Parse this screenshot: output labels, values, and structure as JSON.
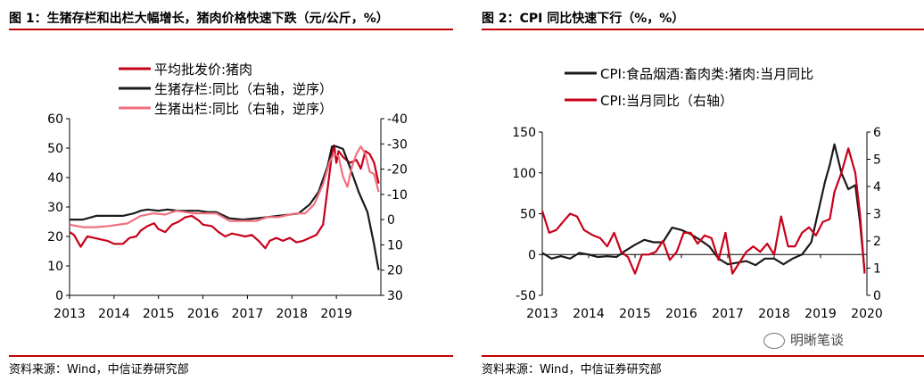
{
  "panels": [
    {
      "title": "图 1：生猪存栏和出栏大幅增长，猪肉价格快速下跌（元/公斤，%）",
      "source": "资料来源：Wind，中信证券研究部"
    },
    {
      "title": "图 2：CPI 同比快速下行（%，%）",
      "source": "资料来源：Wind，中信证券研究部"
    }
  ],
  "watermark": "明晰笔谈",
  "chart_data": [
    {
      "type": "line",
      "x_ticks": [
        "2013",
        "2014",
        "2015",
        "2016",
        "2017",
        "2018",
        "2019"
      ],
      "ylim": [
        0,
        60
      ],
      "y_ticks": [
        0,
        10,
        20,
        30,
        40,
        50,
        60
      ],
      "y2lim": [
        30,
        -40
      ],
      "y2_ticks": [
        "-40",
        "-30",
        "-20",
        "-10",
        "0",
        "10",
        "20",
        "30"
      ],
      "y2_reversed": true,
      "legend_position": "top-left",
      "series": [
        {
          "name": "平均批发价:猪肉",
          "color": "#c8001a",
          "axis": "left",
          "x": [
            2013.0,
            2013.1,
            2013.25,
            2013.4,
            2013.55,
            2013.7,
            2013.85,
            2014.0,
            2014.2,
            2014.35,
            2014.5,
            2014.6,
            2014.75,
            2014.9,
            2015.0,
            2015.15,
            2015.3,
            2015.45,
            2015.6,
            2015.75,
            2015.9,
            2016.0,
            2016.2,
            2016.35,
            2016.5,
            2016.65,
            2016.8,
            2016.95,
            2017.1,
            2017.25,
            2017.4,
            2017.5,
            2017.65,
            2017.8,
            2017.95,
            2018.1,
            2018.25,
            2018.4,
            2018.55,
            2018.7,
            2018.8,
            2018.9,
            2018.95,
            2019.0,
            2019.05,
            2019.15,
            2019.3,
            2019.45,
            2019.55,
            2019.65,
            2019.75,
            2019.85,
            2019.95
          ],
          "y": [
            21.5,
            20.5,
            16.5,
            20,
            19.5,
            19,
            18.5,
            17.5,
            17.5,
            19.5,
            20,
            22,
            23.5,
            24.5,
            22.5,
            21.5,
            24,
            25,
            26.5,
            27,
            25.5,
            24,
            23.5,
            21.5,
            20,
            21,
            20.5,
            20,
            20.5,
            18.5,
            16,
            18.5,
            19.5,
            18.5,
            19.5,
            18,
            18.5,
            19.5,
            20.5,
            24,
            36,
            48,
            51,
            45,
            49,
            47,
            45,
            46,
            43,
            49,
            48,
            45,
            38
          ]
        },
        {
          "name": "生猪存栏:同比（右轴，逆序）",
          "color": "#1a1a1a",
          "axis": "right",
          "x": [
            2013.0,
            2013.3,
            2013.6,
            2013.9,
            2014.2,
            2014.45,
            2014.6,
            2014.75,
            2015.0,
            2015.2,
            2015.45,
            2015.7,
            2015.9,
            2016.1,
            2016.3,
            2016.6,
            2016.9,
            2017.2,
            2017.45,
            2017.7,
            2017.95,
            2018.15,
            2018.4,
            2018.6,
            2018.8,
            2018.9,
            2019.0,
            2019.15,
            2019.3,
            2019.5,
            2019.7,
            2019.85,
            2019.95
          ],
          "y": [
            0,
            0,
            -1.5,
            -1.5,
            -1.5,
            -2.5,
            -3.5,
            -4,
            -3.5,
            -4,
            -3.5,
            -3.5,
            -3.5,
            -3,
            -3,
            -0.5,
            0,
            -0.5,
            -1,
            -1.5,
            -2,
            -2.5,
            -6,
            -11,
            -21,
            -29,
            -29,
            -28,
            -21,
            -11,
            -3,
            10,
            20
          ]
        },
        {
          "name": "生猪出栏:同比（右轴，逆序）",
          "color": "#f07080",
          "axis": "right",
          "x": [
            2013.0,
            2013.3,
            2013.6,
            2013.9,
            2014.3,
            2014.6,
            2014.9,
            2015.15,
            2015.4,
            2015.6,
            2015.8,
            2016.0,
            2016.3,
            2016.6,
            2016.9,
            2017.2,
            2017.45,
            2017.7,
            2017.95,
            2018.1,
            2018.3,
            2018.5,
            2018.7,
            2018.85,
            2018.95,
            2019.05,
            2019.15,
            2019.25,
            2019.35,
            2019.45,
            2019.55,
            2019.65,
            2019.75,
            2019.85,
            2019.95
          ],
          "y": [
            2,
            3,
            3,
            2.5,
            1.5,
            -1.5,
            -2.5,
            -2,
            -3.5,
            -3,
            -2.5,
            -2.5,
            -2.5,
            0.5,
            0.5,
            0.5,
            -1,
            -1,
            -2,
            -2.5,
            -2.5,
            -6,
            -14,
            -23,
            -26,
            -25,
            -17,
            -13,
            -21,
            -26,
            -29,
            -26,
            -19,
            -18,
            -11
          ]
        }
      ]
    },
    {
      "type": "line",
      "x_ticks": [
        "2013",
        "2014",
        "2015",
        "2016",
        "2017",
        "2018",
        "2019",
        "2020"
      ],
      "ylim": [
        -50,
        150
      ],
      "y_ticks": [
        -50,
        0,
        50,
        100,
        150
      ],
      "y2lim": [
        0,
        6
      ],
      "y2_ticks": [
        0,
        1,
        2,
        3,
        4,
        5,
        6
      ],
      "legend_position": "top-left",
      "series": [
        {
          "name": "CPI:食品烟酒:畜肉类:猪肉:当月同比",
          "color": "#1a1a1a",
          "axis": "left",
          "x": [
            2013.0,
            2013.2,
            2013.4,
            2013.6,
            2013.8,
            2014.0,
            2014.2,
            2014.4,
            2014.6,
            2014.8,
            2015.0,
            2015.2,
            2015.4,
            2015.6,
            2015.8,
            2016.0,
            2016.2,
            2016.4,
            2016.6,
            2016.8,
            2017.0,
            2017.2,
            2017.4,
            2017.6,
            2017.8,
            2018.0,
            2018.2,
            2018.4,
            2018.6,
            2018.8,
            2019.0,
            2019.1,
            2019.2,
            2019.3,
            2019.45,
            2019.6,
            2019.75,
            2019.85,
            2019.95
          ],
          "y": [
            2,
            -5,
            -2,
            -5,
            2,
            0,
            -3,
            -2,
            -3,
            5,
            12,
            18,
            15,
            15,
            33,
            30,
            25,
            18,
            10,
            -5,
            -12,
            -10,
            -8,
            -13,
            -5,
            -5,
            -12,
            -5,
            0,
            15,
            65,
            90,
            110,
            135,
            100,
            80,
            85,
            40,
            -20
          ]
        },
        {
          "name": "CPI:当月同比（右轴）",
          "color": "#c8001a",
          "axis": "right",
          "x": [
            2013.0,
            2013.15,
            2013.3,
            2013.45,
            2013.6,
            2013.75,
            2013.9,
            2014.1,
            2014.25,
            2014.4,
            2014.55,
            2014.7,
            2014.85,
            2015.0,
            2015.15,
            2015.3,
            2015.45,
            2015.6,
            2015.75,
            2015.9,
            2016.05,
            2016.2,
            2016.35,
            2016.5,
            2016.65,
            2016.8,
            2016.95,
            2017.1,
            2017.25,
            2017.4,
            2017.55,
            2017.7,
            2017.85,
            2018.0,
            2018.15,
            2018.3,
            2018.45,
            2018.6,
            2018.75,
            2018.9,
            2019.05,
            2019.2,
            2019.3,
            2019.45,
            2019.6,
            2019.75,
            2019.85,
            2019.95
          ],
          "y": [
            3.1,
            2.3,
            2.4,
            2.7,
            3.0,
            2.9,
            2.4,
            2.2,
            2.1,
            1.8,
            2.3,
            1.6,
            1.4,
            0.8,
            1.5,
            1.5,
            1.6,
            2.0,
            1.3,
            1.6,
            2.3,
            2.3,
            1.9,
            2.2,
            2.1,
            1.3,
            2.3,
            0.8,
            1.2,
            1.6,
            1.8,
            1.6,
            1.9,
            1.5,
            2.9,
            1.8,
            1.8,
            2.3,
            2.5,
            2.2,
            2.7,
            2.8,
            3.8,
            4.5,
            5.4,
            4.5,
            3.0,
            0.8
          ]
        }
      ]
    }
  ]
}
